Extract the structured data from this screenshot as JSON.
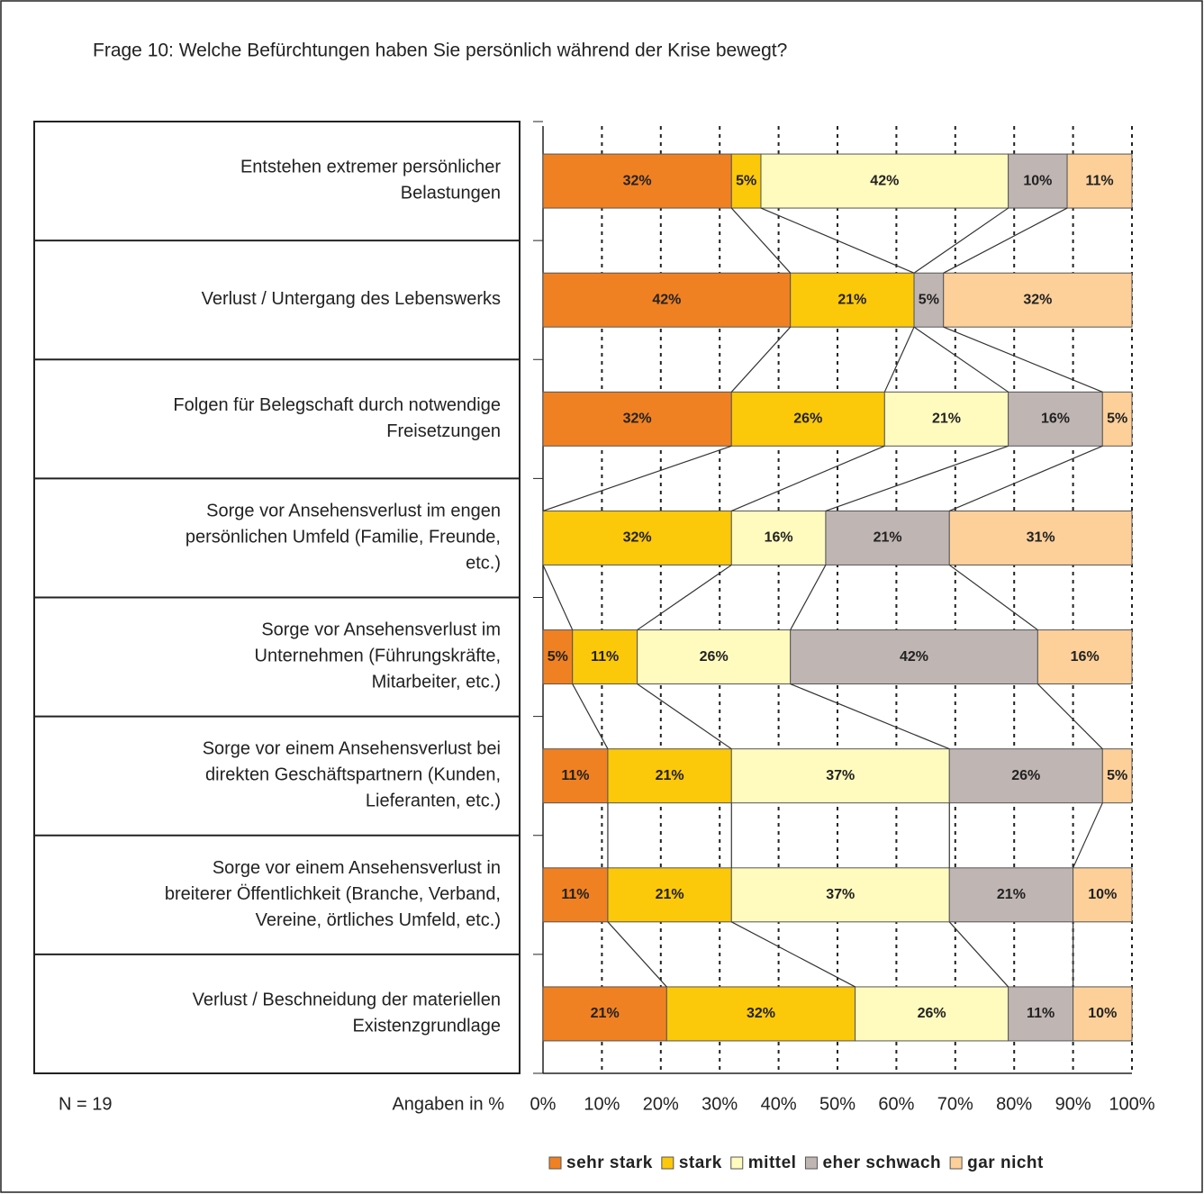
{
  "chart_data": {
    "type": "stacked-bar-horizontal",
    "title": "Frage 10: Welche Befürchtungen haben Sie persönlich während der Krise bewegt?",
    "categories": [
      "Entstehen extremer persönlicher\nBelastungen",
      "Verlust / Untergang des Lebenswerks",
      "Folgen für Belegschaft durch notwendige\nFreisetzungen",
      "Sorge vor Ansehensverlust im engen\npersönlichen Umfeld (Familie, Freunde,\netc.)",
      "Sorge vor Ansehensverlust im\nUnternehmen (Führungskräfte,\nMitarbeiter, etc.)",
      "Sorge vor einem Ansehensverlust bei\ndirekten Geschäftspartnern (Kunden,\nLieferanten, etc.)",
      "Sorge vor einem Ansehensverlust in\nbreiterer Öffentlichkeit (Branche, Verband,\nVereine, örtliches Umfeld, etc.)",
      "Verlust / Beschneidung der materiellen\nExistenzgrundlage"
    ],
    "series": [
      {
        "name": "sehr stark",
        "color": "#f08122",
        "values": [
          32,
          42,
          32,
          0,
          5,
          11,
          11,
          21
        ],
        "value_labels": [
          "32%",
          "42%",
          "32%",
          null,
          "5%",
          "11%",
          "11%",
          "21%"
        ]
      },
      {
        "name": "stark",
        "color": "#fcc80a",
        "values": [
          5,
          21,
          26,
          32,
          11,
          21,
          21,
          32
        ],
        "value_labels": [
          "5%",
          "21%",
          "26%",
          "32%",
          "11%",
          "21%",
          "21%",
          "32%"
        ]
      },
      {
        "name": "mittel",
        "color": "#fffbbf",
        "values": [
          42,
          0,
          21,
          16,
          26,
          37,
          37,
          26
        ],
        "value_labels": [
          "42%",
          null,
          "21%",
          "16%",
          "26%",
          "37%",
          "37%",
          "26%"
        ]
      },
      {
        "name": "eher schwach",
        "color": "#bfb5b3",
        "values": [
          10,
          5,
          16,
          21,
          42,
          26,
          21,
          11
        ],
        "value_labels": [
          "10%",
          "5%",
          "16%",
          "21%",
          "42%",
          "26%",
          "21%",
          "11%"
        ]
      },
      {
        "name": "gar nicht",
        "color": "#fdd09a",
        "values": [
          11,
          32,
          5,
          31,
          16,
          5,
          10,
          10
        ],
        "value_labels": [
          "11%",
          "32%",
          "5%",
          "31%",
          "16%",
          "5%",
          "10%",
          "10%"
        ]
      }
    ],
    "xlim": [
      0,
      100
    ],
    "xticks": [
      {
        "value": 0,
        "label": "0%"
      },
      {
        "value": 10,
        "label": "10%"
      },
      {
        "value": 20,
        "label": "20%"
      },
      {
        "value": 30,
        "label": "30%"
      },
      {
        "value": 40,
        "label": "40%"
      },
      {
        "value": 50,
        "label": "50%"
      },
      {
        "value": 60,
        "label": "60%"
      },
      {
        "value": 70,
        "label": "70%"
      },
      {
        "value": 80,
        "label": "80%"
      },
      {
        "value": 90,
        "label": "90%"
      },
      {
        "value": 100,
        "label": "100%"
      }
    ],
    "grid": true,
    "sample_note": "N = 19",
    "unit_note": "Angaben in %",
    "legend": "bottom"
  }
}
